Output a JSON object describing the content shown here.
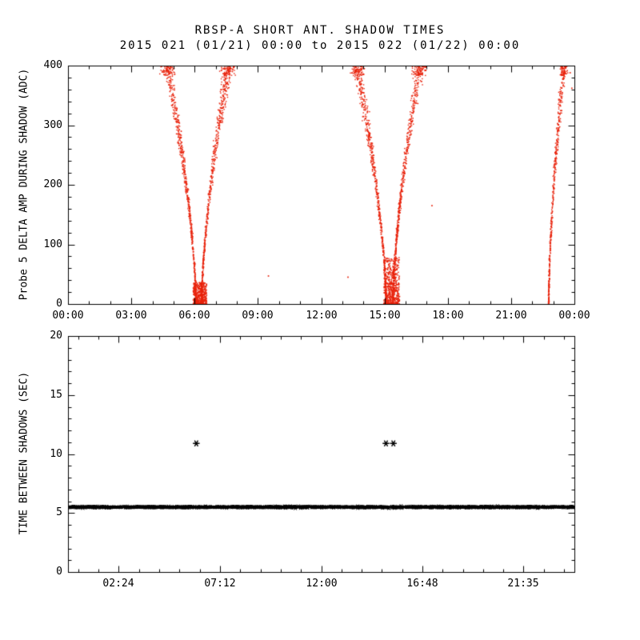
{
  "title": {
    "line1": "RBSP-A SHORT ANT. SHADOW TIMES",
    "line2": "2015 021 (01/21) 00:00 to 2015 022 (01/22) 00:00"
  },
  "colors": {
    "background": "#ffffff",
    "axis": "#000000",
    "top_points": "#e8220b",
    "bottom_points": "#000000"
  },
  "chart_data": [
    {
      "type": "scatter",
      "title": "RBSP-A SHORT ANT. SHADOW TIMES",
      "subtitle": "2015 021 (01/21) 00:00 to 2015 022 (01/22) 00:00",
      "xlabel": "",
      "ylabel": "Probe 5 DELTA AMP DURING SHADOW (ADC)",
      "xlim_hours": [
        0,
        24
      ],
      "ylim": [
        0,
        400
      ],
      "x_major_ticks": [
        0,
        3,
        6,
        9,
        12,
        15,
        18,
        21,
        24
      ],
      "x_tick_labels": [
        "00:00",
        "03:00",
        "06:00",
        "09:00",
        "12:00",
        "15:00",
        "18:00",
        "21:00",
        "00:00"
      ],
      "y_major_ticks": [
        0,
        100,
        200,
        300,
        400
      ],
      "y_tick_labels": [
        "0",
        "100",
        "200",
        "300",
        "400"
      ],
      "marker": "dot",
      "color": "#e8220b",
      "grid": false,
      "clusters": [
        {
          "name": "shadow1-ingress",
          "shape": "branch",
          "t0": 4.7,
          "t1": 6.07,
          "v0": 400,
          "v1": 0,
          "n": 620,
          "fan": 0.5
        },
        {
          "name": "shadow1-bottom",
          "shape": "blob",
          "t0": 5.93,
          "t1": 6.58,
          "v0": 0,
          "v1": 36,
          "n": 430
        },
        {
          "name": "shadow1-egress",
          "shape": "branch",
          "t0": 6.33,
          "t1": 7.62,
          "v0": 0,
          "v1": 400,
          "n": 620,
          "fan": 0.5
        },
        {
          "name": "shadow2-ingress",
          "shape": "branch",
          "t0": 13.68,
          "t1": 15.08,
          "v0": 400,
          "v1": 0,
          "n": 620,
          "fan": 0.5
        },
        {
          "name": "shadow2-bottom",
          "shape": "blob",
          "t0": 14.97,
          "t1": 15.72,
          "v0": 0,
          "v1": 78,
          "n": 520
        },
        {
          "name": "shadow2-egress",
          "shape": "branch",
          "t0": 15.4,
          "t1": 16.7,
          "v0": 0,
          "v1": 400,
          "n": 620,
          "fan": 0.5
        },
        {
          "name": "shadow3-egress",
          "shape": "branch",
          "t0": 22.78,
          "t1": 23.5,
          "v0": 0,
          "v1": 400,
          "n": 480,
          "fan": 0.28
        }
      ],
      "stray_points": [
        [
          9.5,
          47
        ],
        [
          13.27,
          45
        ],
        [
          17.25,
          165
        ],
        [
          16.95,
          392
        ],
        [
          23.8,
          388
        ],
        [
          23.88,
          362
        ]
      ]
    },
    {
      "type": "scatter",
      "title": "",
      "xlabel": "",
      "ylabel": "TIME BETWEEN SHADOWS (SEC)",
      "xlim_hours": [
        0,
        24
      ],
      "ylim": [
        0,
        20
      ],
      "x_major_ticks": [
        2.4,
        7.2,
        12.0,
        16.8,
        21.5833
      ],
      "x_tick_labels": [
        "02:24",
        "07:12",
        "12:00",
        "16:48",
        "21:35"
      ],
      "y_major_ticks": [
        0,
        5,
        10,
        15,
        20
      ],
      "y_tick_labels": [
        "0",
        "5",
        "10",
        "15",
        "20"
      ],
      "marker": "asterisk",
      "color": "#000000",
      "grid": false,
      "band": {
        "t0": 0.02,
        "t1": 23.98,
        "value": 5.5,
        "jitter": 0.09,
        "n": 1600
      },
      "band_gaps": [
        [
          15.22,
          15.34
        ]
      ],
      "outliers": [
        [
          6.08,
          10.9
        ],
        [
          15.07,
          10.9
        ],
        [
          15.42,
          10.9
        ]
      ]
    }
  ]
}
